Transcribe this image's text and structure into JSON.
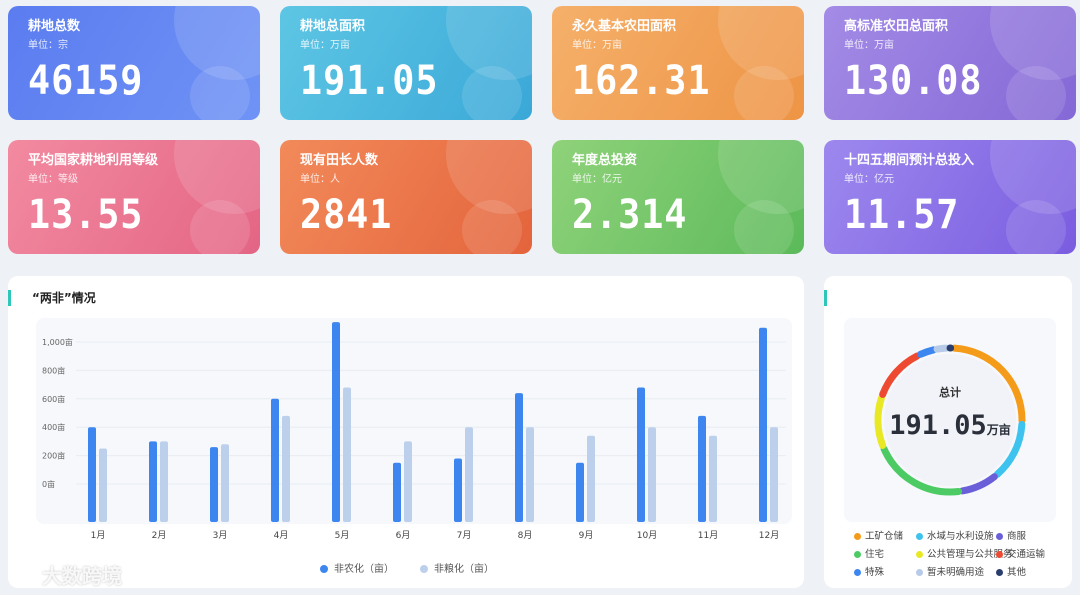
{
  "cards": [
    {
      "title": "耕地总数",
      "unit": "单位：宗",
      "value": "46159",
      "gradient": [
        "#5b7cf0",
        "#6f93f5"
      ]
    },
    {
      "title": "耕地总面积",
      "unit": "单位：万亩",
      "value": "191.05",
      "gradient": [
        "#5ec6e4",
        "#3aa8d8"
      ]
    },
    {
      "title": "永久基本农田面积",
      "unit": "单位：万亩",
      "value": "162.31",
      "gradient": [
        "#f5b06a",
        "#ee9445"
      ]
    },
    {
      "title": "高标准农田总面积",
      "unit": "单位：万亩",
      "value": "130.08",
      "gradient": [
        "#a38be6",
        "#8468d6"
      ]
    },
    {
      "title": "平均国家耕地利用等级",
      "unit": "单位：等级",
      "value": "13.55",
      "gradient": [
        "#f28aa0",
        "#e46585"
      ]
    },
    {
      "title": "现有田长人数",
      "unit": "单位：人",
      "value": "2841",
      "gradient": [
        "#f28a5a",
        "#e4643c"
      ]
    },
    {
      "title": "年度总投资",
      "unit": "单位：亿元",
      "value": "2.314",
      "gradient": [
        "#8fd27a",
        "#5cba5a"
      ]
    },
    {
      "title": "十四五期间预计总投入",
      "unit": "单位：亿元",
      "value": "11.57",
      "gradient": [
        "#9d88ee",
        "#7a5de0"
      ]
    }
  ],
  "bar_panel": {
    "title": "“两非”情况"
  },
  "chart_data": {
    "type": "bar",
    "categories": [
      "1月",
      "2月",
      "3月",
      "4月",
      "5月",
      "6月",
      "7月",
      "8月",
      "9月",
      "10月",
      "11月",
      "12月"
    ],
    "series": [
      {
        "name": "非农化（亩）",
        "color": "#3d86f0",
        "values": [
          400,
          300,
          260,
          600,
          1140,
          150,
          180,
          640,
          150,
          680,
          480,
          1100
        ]
      },
      {
        "name": "非粮化（亩）",
        "color": "#bcd0ec",
        "values": [
          250,
          300,
          280,
          480,
          680,
          300,
          400,
          400,
          340,
          400,
          340,
          400
        ]
      }
    ],
    "y_ticks": [
      "0亩",
      "200亩",
      "400亩",
      "600亩",
      "800亩",
      "1,000亩"
    ],
    "ylim": [
      0,
      1200
    ]
  },
  "donut_panel": {
    "center_label": "总计",
    "center_value": "191.05",
    "center_unit": "万亩",
    "legend": [
      {
        "name": "工矿仓储",
        "color": "#f59b1a"
      },
      {
        "name": "水域与水利设施",
        "color": "#3ec3ee"
      },
      {
        "name": "商服",
        "color": "#6a5fd8"
      },
      {
        "name": "住宅",
        "color": "#4ccb64"
      },
      {
        "name": "公共管理与公共服务",
        "color": "#e8e824"
      },
      {
        "name": "交通运输",
        "color": "#ee4a32"
      },
      {
        "name": "特殊",
        "color": "#3d86f0"
      },
      {
        "name": "暂未明确用途",
        "color": "#b7cbe9"
      },
      {
        "name": "其他",
        "color": "#2a3e6e"
      }
    ],
    "segments": [
      26,
      14,
      9,
      22,
      12,
      13,
      4,
      3,
      1
    ]
  },
  "watermark": "大数跨境"
}
